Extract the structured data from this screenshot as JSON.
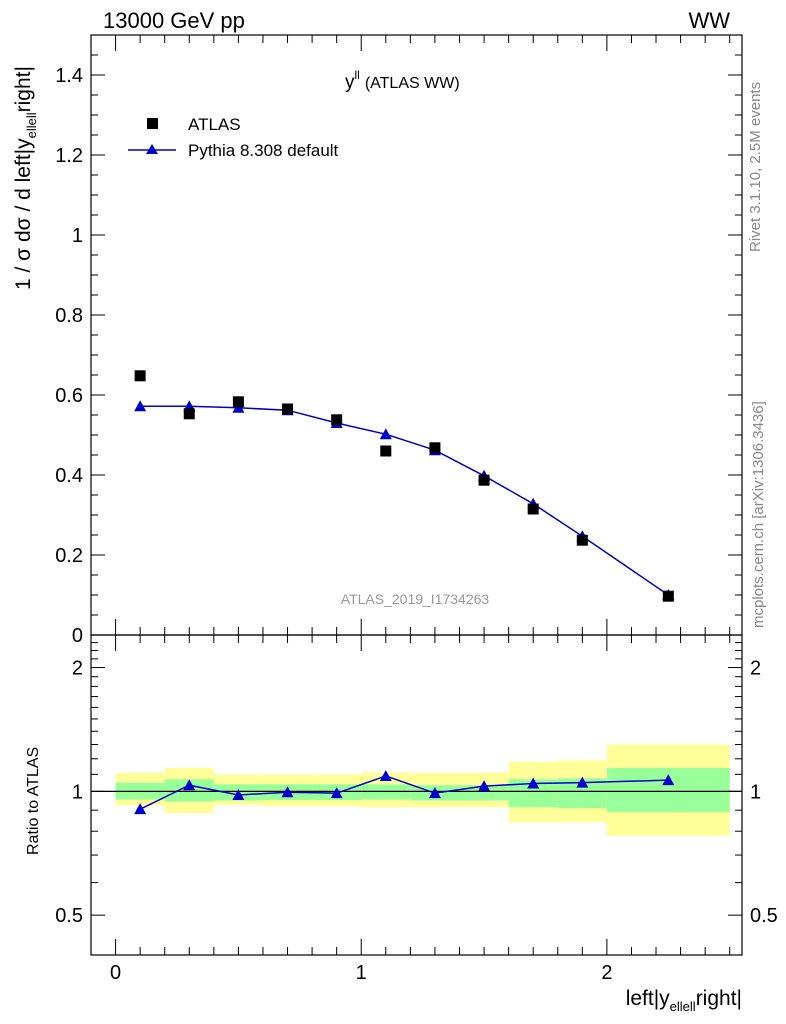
{
  "header": {
    "left": "13000 GeV pp",
    "right": "WW"
  },
  "side_text": {
    "rivet": "Rivet 3.1.10,  2.5M events",
    "source": "mcplots.cern.ch [arXiv:1306.3436]"
  },
  "chart_data": [
    {
      "type": "scatter",
      "title_main": "y",
      "title_sup": "ll",
      "title_rest": "(ATLAS WW)",
      "ylabel": "1 / σ  dσ / d left|y",
      "ylabel_sub": "ellell",
      "ylabel_end": "right|",
      "analysis_tag": "ATLAS_2019_I1734263",
      "xlim": [
        -0.1,
        2.55
      ],
      "ylim": [
        0,
        1.5
      ],
      "yticks": [
        "0",
        "0.2",
        "0.4",
        "0.6",
        "0.8",
        "1",
        "1.2",
        "1.4"
      ],
      "legend_position": "top-left",
      "series": [
        {
          "name": "ATLAS",
          "color": "#000000",
          "marker": "square",
          "x": [
            0.1,
            0.3,
            0.5,
            0.7,
            0.9,
            1.1,
            1.3,
            1.5,
            1.7,
            1.9,
            2.25
          ],
          "values": [
            0.648,
            0.553,
            0.583,
            0.565,
            0.538,
            0.46,
            0.468,
            0.387,
            0.315,
            0.237,
            0.097
          ]
        },
        {
          "name": "Pythia 8.308 default",
          "color": "#0000cc",
          "marker": "triangle",
          "x": [
            0.1,
            0.3,
            0.5,
            0.7,
            0.9,
            1.1,
            1.3,
            1.5,
            1.7,
            1.9,
            2.25
          ],
          "values": [
            0.572,
            0.572,
            0.568,
            0.562,
            0.53,
            0.502,
            0.462,
            0.398,
            0.328,
            0.247,
            0.1
          ]
        }
      ]
    },
    {
      "type": "line",
      "ylabel": "Ratio to ATLAS",
      "xlabel": "left|y",
      "xlabel_sub": "ellell",
      "xlabel_end": "right|",
      "xlim": [
        -0.1,
        2.55
      ],
      "ylim": [
        0.4,
        2.4
      ],
      "yscale": "log",
      "xticks": [
        "0",
        "1",
        "2"
      ],
      "yticks": [
        "0.5",
        "1",
        "2"
      ],
      "bands": {
        "bin_edges": [
          0,
          0.2,
          0.4,
          0.6,
          0.8,
          1.0,
          1.2,
          1.4,
          1.6,
          1.8,
          2.0,
          2.5
        ],
        "inner": [
          [
            0.955,
            1.05
          ],
          [
            0.945,
            1.07
          ],
          [
            0.95,
            1.04
          ],
          [
            0.952,
            1.04
          ],
          [
            0.952,
            1.04
          ],
          [
            0.955,
            1.04
          ],
          [
            0.95,
            1.035
          ],
          [
            0.95,
            1.035
          ],
          [
            0.915,
            1.07
          ],
          [
            0.91,
            1.075
          ],
          [
            0.89,
            1.14
          ]
        ],
        "outer": [
          [
            0.925,
            1.11
          ],
          [
            0.885,
            1.14
          ],
          [
            0.925,
            1.1
          ],
          [
            0.92,
            1.1
          ],
          [
            0.92,
            1.1
          ],
          [
            0.915,
            1.11
          ],
          [
            0.915,
            1.11
          ],
          [
            0.915,
            1.11
          ],
          [
            0.84,
            1.18
          ],
          [
            0.84,
            1.19
          ],
          [
            0.78,
            1.3
          ]
        ]
      },
      "series": [
        {
          "name": "Pythia 8.308 default",
          "color": "#0000cc",
          "x": [
            0.1,
            0.3,
            0.5,
            0.7,
            0.9,
            1.1,
            1.3,
            1.5,
            1.7,
            1.9,
            2.25
          ],
          "values": [
            0.905,
            1.035,
            0.98,
            0.995,
            0.99,
            1.09,
            0.99,
            1.03,
            1.045,
            1.05,
            1.065
          ]
        }
      ]
    }
  ]
}
